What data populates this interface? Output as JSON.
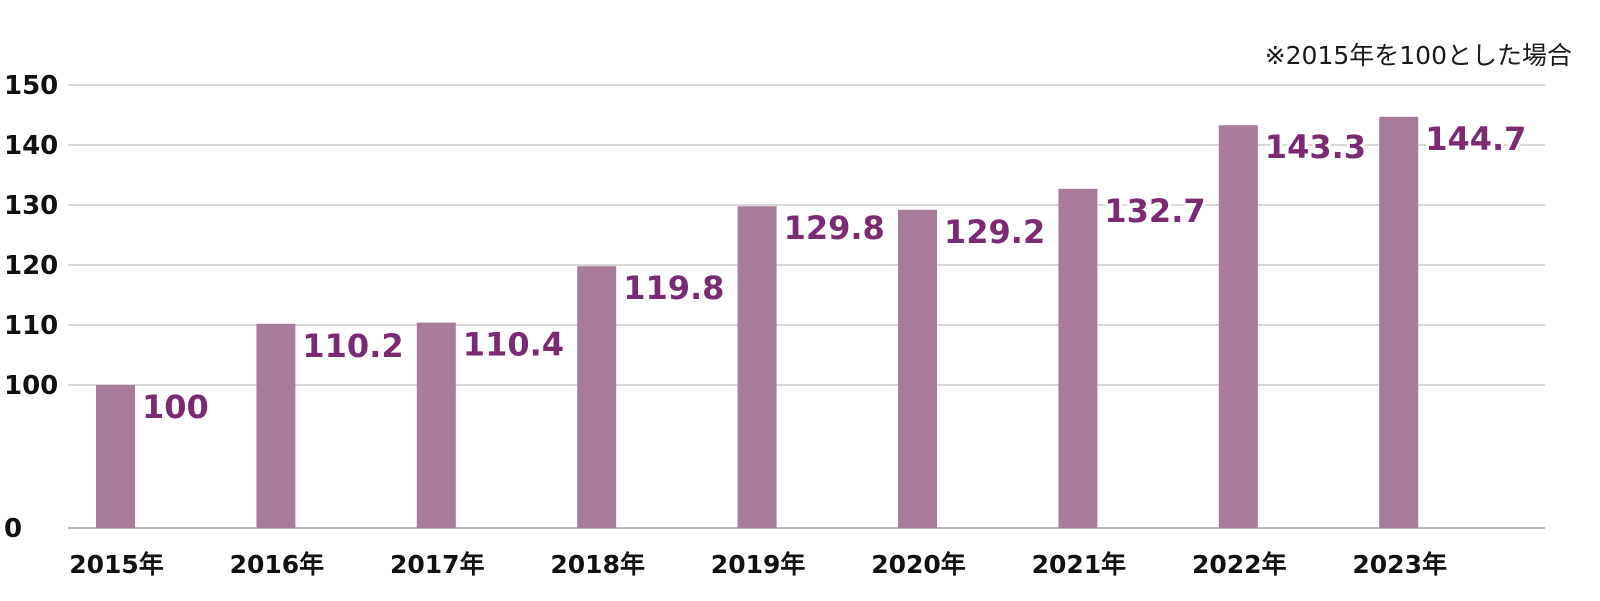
{
  "note": "※2015年を100とした場合",
  "colors": {
    "bar": "#a97b9b",
    "label": "#7b2a73",
    "grid": "#cccccc",
    "axis": "#bbbbbb"
  },
  "chart_data": {
    "type": "bar",
    "title": "",
    "xlabel": "",
    "ylabel": "",
    "categories": [
      "2015年",
      "2016年",
      "2017年",
      "2018年",
      "2019年",
      "2020年",
      "2021年",
      "2022年",
      "2023年"
    ],
    "values": [
      100,
      110.2,
      110.4,
      119.8,
      129.8,
      129.2,
      132.7,
      143.3,
      144.7
    ],
    "value_labels": [
      "100",
      "110.2",
      "110.4",
      "119.8",
      "129.8",
      "129.2",
      "132.7",
      "143.3",
      "144.7"
    ],
    "yticks": [
      0,
      100,
      110,
      120,
      130,
      140,
      150
    ],
    "ytick_labels": [
      "0",
      "100",
      "110",
      "120",
      "130",
      "140",
      "150"
    ],
    "axis_break": true,
    "ylim": [
      0,
      150
    ],
    "grid": true,
    "legend": "none"
  }
}
